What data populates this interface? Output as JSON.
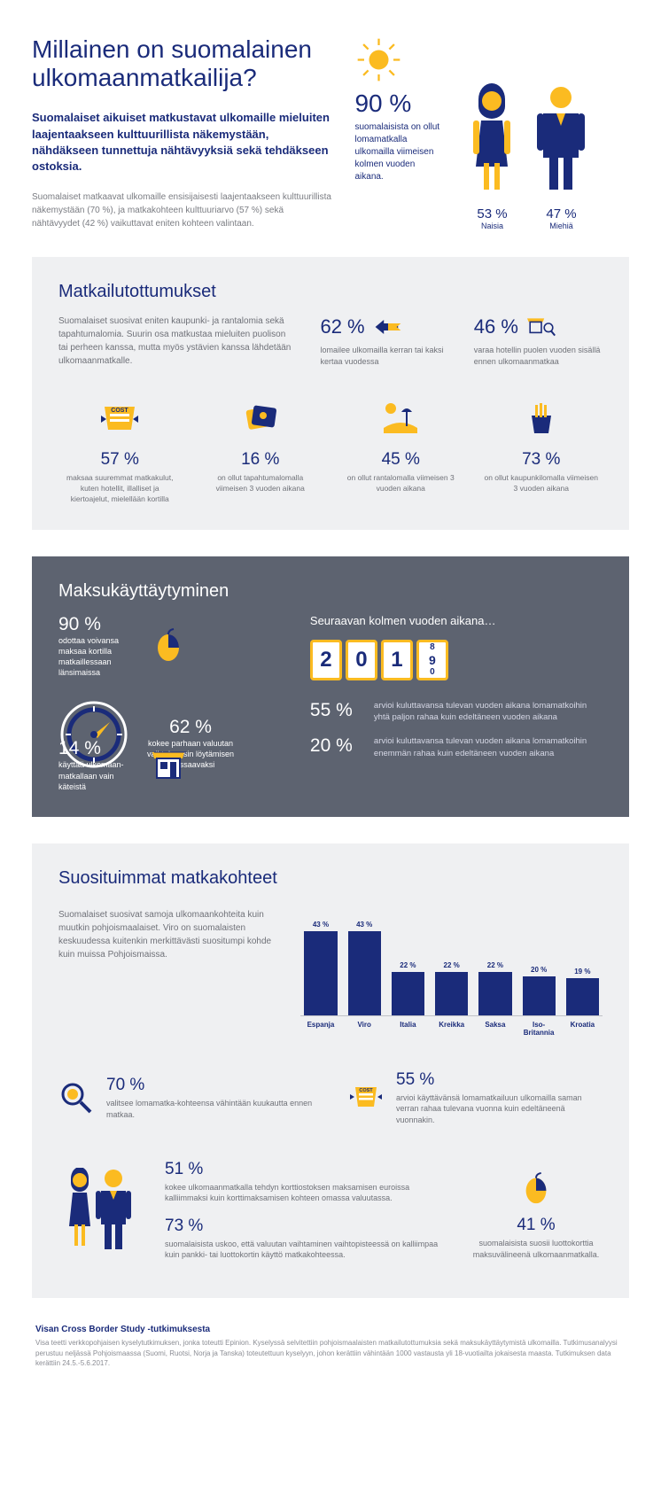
{
  "hero": {
    "title": "Millainen on suomalainen ulkomaanmatkailija?",
    "subtitle": "Suomalaiset aikuiset matkustavat ulkomaille mieluiten laajentaakseen kulttuurillista näkemystään, nähdäkseen tunnettuja nähtävyyksiä sekä tehdäkseen ostoksia.",
    "description": "Suomalaiset matkaavat ulkomaille ensisijaisesti laajentaakseen kulttuurillista näkemystään (70 %), ja matkakohteen kulttuuriarvo (57 %) sekä nähtävyydet (42 %) vaikuttavat eniten kohteen valintaan.",
    "stat90_pct": "90 %",
    "stat90_desc": "suomalaisista on ollut lomamatkalla ulkomailla viimeisen kolmen vuoden aikana.",
    "woman_pct": "53 %",
    "woman_lbl": "Naisia",
    "man_pct": "47 %",
    "man_lbl": "Miehiä"
  },
  "habits": {
    "title": "Matkailutottumukset",
    "intro": "Suomalaiset suosivat eniten kaupunki- ja rantalomia sekä tapahtumalomia. Suurin osa matkustaa mieluiten puolison tai perheen kanssa, mutta myös ystävien kanssa lähdetään ulkomaanmatkalle.",
    "s62_pct": "62 %",
    "s62_desc": "lomailee ulkomailla kerran tai kaksi kertaa vuodessa",
    "s46_pct": "46 %",
    "s46_desc": "varaa hotellin puolen vuoden sisällä ennen ulkomaanmatkaa",
    "row": [
      {
        "pct": "57 %",
        "desc": "maksaa suuremmat matkakulut, kuten hotellit, illalliset ja kiertoajelut, mielellään kortilla"
      },
      {
        "pct": "16 %",
        "desc": "on ollut tapahtumalomalla viimeisen 3 vuoden aikana"
      },
      {
        "pct": "45 %",
        "desc": "on ollut rantalomalla viimeisen 3 vuoden aikana"
      },
      {
        "pct": "73 %",
        "desc": "on ollut kaupunkilomalla viimeisen 3 vuoden aikana"
      }
    ]
  },
  "payment": {
    "title": "Maksukäyttäytyminen",
    "l90_pct": "90 %",
    "l90_txt": "odottaa voivansa maksaa kortilla matkaillessaan länsimaissa",
    "l14_pct": "14 %",
    "l14_txt": "käyttää ulkomaan-matkallaan vain käteistä",
    "l62_pct": "62 %",
    "l62_txt": "kokee parhaan valuutan vaihtokurssin löytämisen stressaavaksi",
    "right_sub": "Seuraavan kolmen vuoden aikana…",
    "d1": "2",
    "d2": "0",
    "d3": "1",
    "droll_a": "8",
    "droll_b": "9",
    "droll_c": "0",
    "r55_pct": "55 %",
    "r55_desc": "arvioi kuluttavansa tulevan vuoden aikana lomamatkoihin yhtä paljon rahaa kuin edeltäneen vuoden aikana",
    "r20_pct": "20 %",
    "r20_desc": "arvioi kuluttavansa tulevan vuoden aikana lomamatkoihin enemmän rahaa kuin edeltäneen vuoden aikana"
  },
  "dest": {
    "title": "Suosituimmat matkakohteet",
    "intro": "Suomalaiset suosivat samoja ulkomaankohteita kuin muutkin pohjoismaalaiset. Viro on suomalaisten keskuudessa kuitenkin merkittävästi suositumpi kohde kuin muissa Pohjoismaissa.",
    "bars": [
      {
        "label": "Espanja",
        "value": 43,
        "value_label": "43 %"
      },
      {
        "label": "Viro",
        "value": 43,
        "value_label": "43 %"
      },
      {
        "label": "Italia",
        "value": 22,
        "value_label": "22 %"
      },
      {
        "label": "Kreikka",
        "value": 22,
        "value_label": "22 %"
      },
      {
        "label": "Saksa",
        "value": 22,
        "value_label": "22 %"
      },
      {
        "label": "Iso-Britannia",
        "value": 20,
        "value_label": "20 %"
      },
      {
        "label": "Kroatia",
        "value": 19,
        "value_label": "19 %"
      }
    ],
    "m70_pct": "70 %",
    "m70_txt": "valitsee lomamatka-kohteensa vähintään kuukautta ennen matkaa.",
    "m55_pct": "55 %",
    "m55_txt": "arvioi käyttävänsä lomamatkailuun ulkomailla saman verran rahaa tulevana vuonna kuin edeltäneenä vuonnakin.",
    "b51_pct": "51 %",
    "b51_txt": "kokee ulkomaanmatkalla tehdyn korttiostoksen maksamisen euroissa kalliimmaksi kuin korttimaksamisen kohteen omassa valuutassa.",
    "b73_pct": "73 %",
    "b73_txt": "suomalaisista uskoo, että valuutan vaihtaminen vaihtopisteessä on kalliimpaa kuin pankki- tai luottokortin käyttö matkakohteessa.",
    "b41_pct": "41 %",
    "b41_txt": "suomalaisista suosii luottokorttia maksuvälineenä ulkomaanmatkalla."
  },
  "footer": {
    "heading": "Visan Cross Border Study -tutkimuksesta",
    "text": "Visa teetti verkkopohjaisen kyselytutkimuksen, jonka toteutti Epinion. Kyselyssä selvitettiin pohjoismaalaisten matkailutottumuksia sekä maksukäyttäytymistä ulkomailla. Tutkimusanalyysi perustuu neljässä Pohjoismaassa (Suomi, Ruotsi, Norja ja Tanska) toteutettuun kyselyyn, johon kerättiin vähintään 1000 vastausta yli 18-vuotiailta jokaisesta maasta. Tutkimuksen data kerättiin 24.5.-5.6.2017."
  },
  "colors": {
    "navy": "#1a2b7a",
    "gold": "#fbbb21",
    "grey": "#6f7178",
    "bg": "#eff0f2"
  }
}
